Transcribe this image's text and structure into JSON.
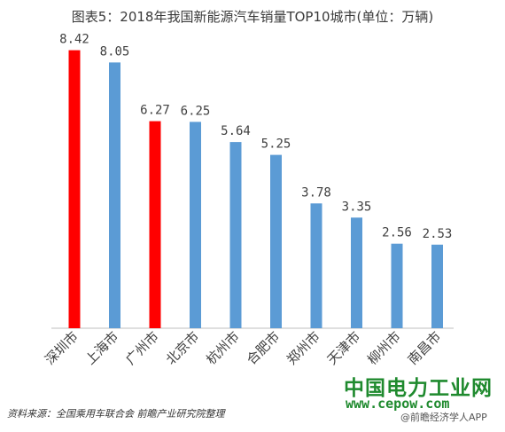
{
  "title": "图表5：2018年我国新能源汽车销量TOP10城市(单位：万辆)",
  "source": "资料来源：全国乘用车联合会 前瞻产业研究院整理",
  "watermark": {
    "main": "中国电力工业网",
    "url": "www.cepow.com",
    "app": "@前瞻经济学人APP"
  },
  "colors": {
    "highlight": "#ff0000",
    "normal": "#5b9bd5",
    "baseline": "#bfbfbf"
  },
  "chart_data": {
    "type": "bar",
    "title": "图表5：2018年我国新能源汽车销量TOP10城市(单位：万辆)",
    "xlabel": "",
    "ylabel": "",
    "categories": [
      "深圳市",
      "上海市",
      "广州市",
      "北京市",
      "杭州市",
      "合肥市",
      "郑州市",
      "天津市",
      "柳州市",
      "南昌市"
    ],
    "values": [
      8.42,
      8.05,
      6.27,
      6.25,
      5.64,
      5.25,
      3.78,
      3.35,
      2.56,
      2.53
    ],
    "data_labels": [
      "8.42",
      "8.05",
      "6.27",
      "6.25",
      "5.64",
      "5.25",
      "3.78",
      "3.35",
      "2.56",
      "2.53"
    ],
    "highlighted": [
      true,
      false,
      true,
      false,
      false,
      false,
      false,
      false,
      false,
      false
    ],
    "ylim": [
      0,
      9
    ],
    "grid": false,
    "legend": "none"
  }
}
